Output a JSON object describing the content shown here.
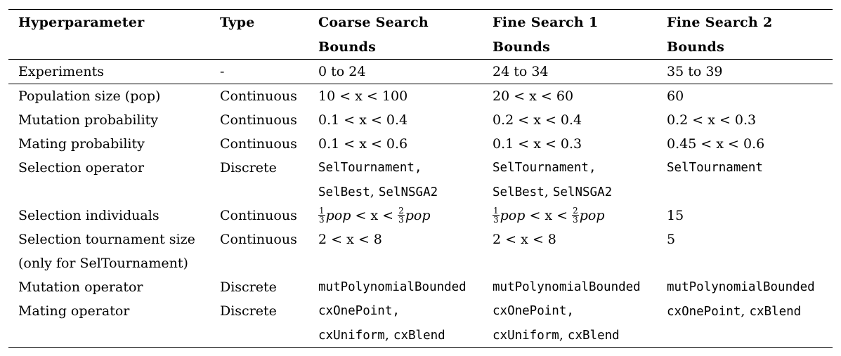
{
  "headers": {
    "hyperparameter": "Hyperparameter",
    "type": "Type",
    "coarse_line1": "Coarse Search",
    "coarse_line2": "Bounds",
    "fine1_line1": "Fine Search 1",
    "fine1_line2": "Bounds",
    "fine2_line1": "Fine Search 2",
    "fine2_line2": "Bounds"
  },
  "experiments": {
    "label": "Experiments",
    "type": "-",
    "coarse": "0 to 24",
    "fine1": "24 to 34",
    "fine2": "35 to 39"
  },
  "rows": {
    "pop": {
      "label": "Population size (pop)",
      "type": "Continuous",
      "coarse": "10 < x < 100",
      "fine1": "20 < x < 60",
      "fine2": "60"
    },
    "mut_prob": {
      "label": "Mutation probability",
      "type": "Continuous",
      "coarse": "0.1 < x < 0.4",
      "fine1": "0.2 < x < 0.4",
      "fine2": "0.2 < x < 0.3"
    },
    "mate_prob": {
      "label": "Mating probability",
      "type": "Continuous",
      "coarse": "0.1 < x < 0.6",
      "fine1": "0.1 < x < 0.3",
      "fine2": "0.45 < x < 0.6"
    },
    "sel_op": {
      "label": "Selection operator",
      "type": "Discrete",
      "coarse_line1": "SelTournament,",
      "coarse_line2a": "SelBest",
      "coarse_line2b": "SelNSGA2",
      "fine1_line1": "SelTournament,",
      "fine1_line2a": "SelBest",
      "fine1_line2b": "SelNSGA2",
      "fine2": "SelTournament"
    },
    "sel_ind": {
      "label": "Selection individuals",
      "type": "Continuous",
      "frac_a_num": "1",
      "frac_a_den": "3",
      "pop_text": "pop",
      "mid": " < x < ",
      "frac_b_num": "2",
      "frac_b_den": "3",
      "fine2": "15"
    },
    "sel_tour": {
      "label_line1": "Selection tournament size",
      "label_line2": "(only for SelTournament)",
      "type": "Continuous",
      "coarse": "2 < x < 8",
      "fine1": "2 < x < 8",
      "fine2": "5"
    },
    "mut_op": {
      "label": "Mutation operator",
      "type": "Discrete",
      "coarse": "mutPolynomialBounded",
      "fine1": "mutPolynomialBounded",
      "fine2": "mutPolynomialBounded"
    },
    "mate_op": {
      "label": "Mating operator",
      "type": "Discrete",
      "coarse_line1": "cxOnePoint,",
      "coarse_line2a": "cxUniform",
      "coarse_line2b": "cxBlend",
      "fine1_line1": "cxOnePoint,",
      "fine1_line2a": "cxUniform",
      "fine1_line2b": "cxBlend",
      "fine2a": "cxOnePoint",
      "fine2b": "cxBlend"
    }
  }
}
